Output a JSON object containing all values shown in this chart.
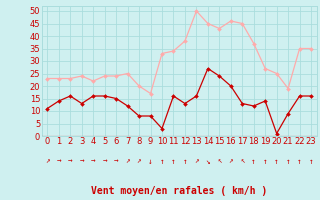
{
  "hours": [
    0,
    1,
    2,
    3,
    4,
    5,
    6,
    7,
    8,
    9,
    10,
    11,
    12,
    13,
    14,
    15,
    16,
    17,
    18,
    19,
    20,
    21,
    22,
    23
  ],
  "wind_avg": [
    11,
    14,
    16,
    13,
    16,
    16,
    15,
    12,
    8,
    8,
    3,
    16,
    13,
    16,
    27,
    24,
    20,
    13,
    12,
    14,
    1,
    9,
    16,
    16
  ],
  "wind_gust": [
    23,
    23,
    23,
    24,
    22,
    24,
    24,
    25,
    20,
    17,
    33,
    34,
    38,
    50,
    45,
    43,
    46,
    45,
    37,
    27,
    25,
    19,
    35,
    35
  ],
  "bg_color": "#cff0f0",
  "grid_color": "#aadddd",
  "avg_color": "#cc0000",
  "gust_color": "#ffaaaa",
  "axis_color": "#cc0000",
  "spine_color": "#888888",
  "xlabel": "Vent moyen/en rafales ( km/h )",
  "ylim": [
    0,
    52
  ],
  "yticks": [
    0,
    5,
    10,
    15,
    20,
    25,
    30,
    35,
    40,
    45,
    50
  ],
  "tick_fontsize": 6,
  "label_fontsize": 7,
  "wind_arrows": [
    "↗",
    "→",
    "→",
    "→",
    "→",
    "→",
    "→",
    "↗",
    "↗",
    "↓",
    "↑",
    "↑",
    "↑",
    "↗",
    "↘",
    "↖",
    "↗",
    "↖",
    "↑",
    "↑",
    "↑",
    "↑",
    "↑",
    "↑"
  ]
}
